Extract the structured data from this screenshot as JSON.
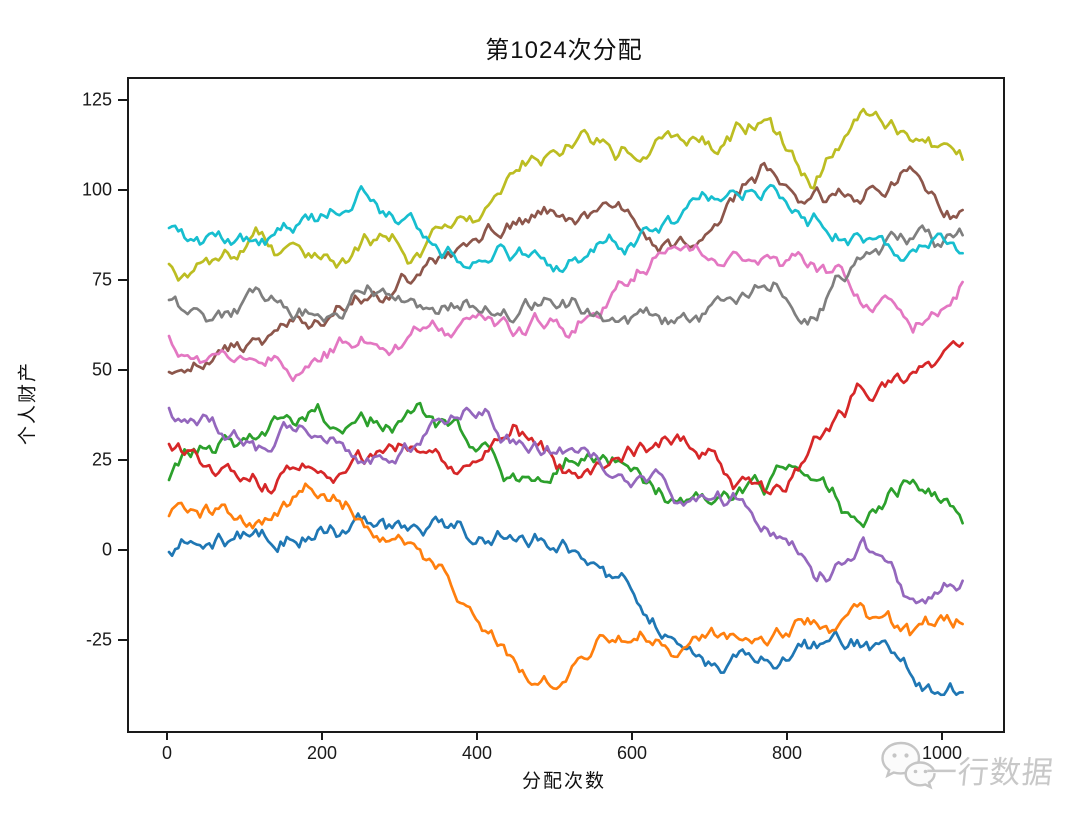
{
  "chart_data": {
    "type": "line",
    "title": "第1024次分配",
    "xlabel": "分配次数",
    "ylabel": "个人财产",
    "x_ticks": [
      0,
      200,
      400,
      600,
      800,
      1000
    ],
    "y_ticks": [
      125,
      100,
      75,
      50,
      25,
      0,
      -25
    ],
    "xlim": [
      -51,
      1075
    ],
    "ylim": [
      -50,
      131
    ],
    "grid": false,
    "legend": "none",
    "x_anchor_step": 64,
    "x_max": 1024,
    "series": [
      {
        "name": "line-1",
        "color": "#1f77b4",
        "values": [
          0,
          5,
          3,
          6,
          8,
          7,
          4,
          3,
          2,
          -7,
          -23,
          -31,
          -30,
          -25,
          -26,
          -35,
          -39
        ]
      },
      {
        "name": "line-2",
        "color": "#ff7f0e",
        "values": [
          10,
          12,
          9,
          15,
          7,
          1,
          -15,
          -31,
          -36,
          -25,
          -26,
          -23,
          -25,
          -19,
          -15,
          -22,
          -20
        ]
      },
      {
        "name": "line-3",
        "color": "#2ca02c",
        "values": [
          20,
          30,
          34,
          41,
          35,
          41,
          31,
          20,
          26,
          25,
          14,
          14,
          16,
          20,
          7,
          20,
          8
        ]
      },
      {
        "name": "line-4",
        "color": "#d62728",
        "values": [
          30,
          22,
          17,
          22,
          26,
          28,
          24,
          35,
          22,
          26,
          32,
          28,
          17,
          32,
          45,
          50,
          58
        ]
      },
      {
        "name": "line-5",
        "color": "#9467bd",
        "values": [
          40,
          33,
          28,
          32,
          26,
          30,
          40,
          30,
          28,
          21,
          20,
          15,
          7,
          -7,
          4,
          -13,
          -8
        ]
      },
      {
        "name": "line-6",
        "color": "#8c564b",
        "values": [
          50,
          56,
          60,
          64,
          70,
          77,
          85,
          91,
          92,
          96,
          86,
          91,
          108,
          100,
          98,
          106,
          95
        ]
      },
      {
        "name": "line-7",
        "color": "#e377c2",
        "values": [
          60,
          55,
          54,
          53,
          58,
          62,
          65,
          61,
          60,
          73,
          83,
          81,
          82,
          80,
          68,
          61,
          75
        ]
      },
      {
        "name": "line-8",
        "color": "#7f7f7f",
        "values": [
          70,
          67,
          70,
          66,
          74,
          68,
          70,
          65,
          68,
          64,
          65,
          70,
          74,
          65,
          82,
          87,
          88
        ]
      },
      {
        "name": "line-9",
        "color": "#bcbd22",
        "values": [
          80,
          81,
          85,
          82,
          87,
          83,
          92,
          106,
          113,
          109,
          116,
          111,
          120,
          101,
          123,
          114,
          109
        ]
      },
      {
        "name": "line-10",
        "color": "#17becf",
        "values": [
          90,
          89,
          87,
          92,
          99,
          90,
          79,
          83,
          79,
          86,
          92,
          98,
          100,
          94,
          86,
          84,
          83
        ]
      }
    ]
  },
  "watermark": {
    "text": "一行数据",
    "icon": "wechat-icon",
    "color": "#c6c6c6"
  }
}
